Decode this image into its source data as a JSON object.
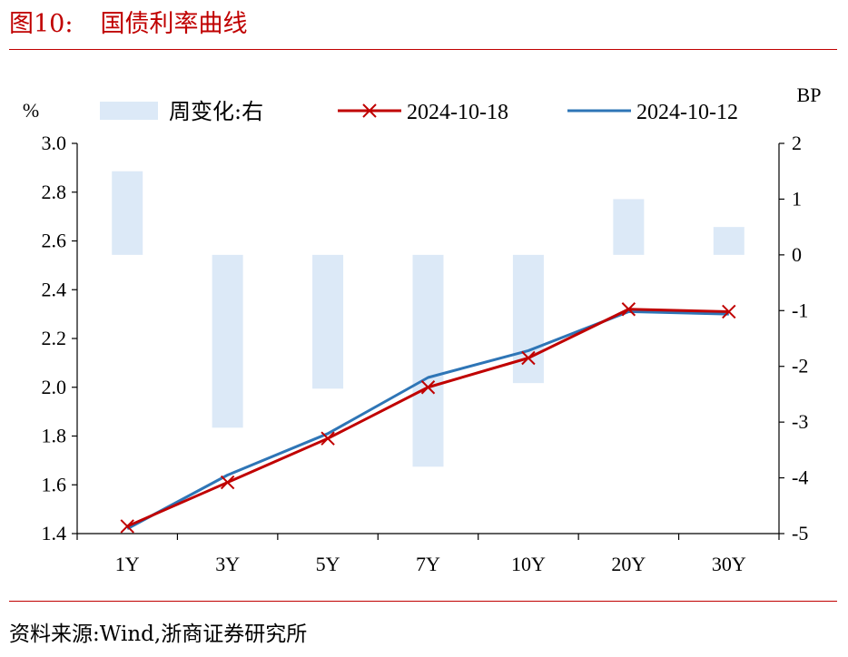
{
  "figure": {
    "label": "图10:",
    "title": "国债利率曲线",
    "source": "资料来源:Wind,浙商证券研究所"
  },
  "chart_data": {
    "type": "line",
    "categories": [
      "1Y",
      "3Y",
      "5Y",
      "7Y",
      "10Y",
      "20Y",
      "30Y"
    ],
    "left_axis": {
      "unit": "%",
      "ylim": [
        1.4,
        3.0
      ],
      "ticks": [
        "1.4",
        "1.6",
        "1.8",
        "2.0",
        "2.2",
        "2.4",
        "2.6",
        "2.8",
        "3.0"
      ]
    },
    "right_axis": {
      "unit": "BP",
      "ylim": [
        -5,
        2
      ],
      "ticks": [
        "-5",
        "-4",
        "-3",
        "-2",
        "-1",
        "0",
        "1",
        "2"
      ]
    },
    "series": [
      {
        "name": "周变化:右",
        "type": "bar",
        "axis": "right",
        "color": "#dce9f7",
        "values": [
          1.5,
          -3.1,
          -2.4,
          -3.8,
          -2.3,
          1.0,
          0.5
        ]
      },
      {
        "name": "2024-10-18",
        "type": "line",
        "axis": "left",
        "color": "#c00000",
        "marker": "x",
        "values": [
          1.43,
          1.61,
          1.79,
          2.0,
          2.12,
          2.32,
          2.31
        ]
      },
      {
        "name": "2024-10-12",
        "type": "line",
        "axis": "left",
        "color": "#2e75b6",
        "marker": "none",
        "values": [
          1.42,
          1.64,
          1.81,
          2.04,
          2.15,
          2.31,
          2.3
        ]
      }
    ],
    "legend_position": "top",
    "grid": false
  }
}
